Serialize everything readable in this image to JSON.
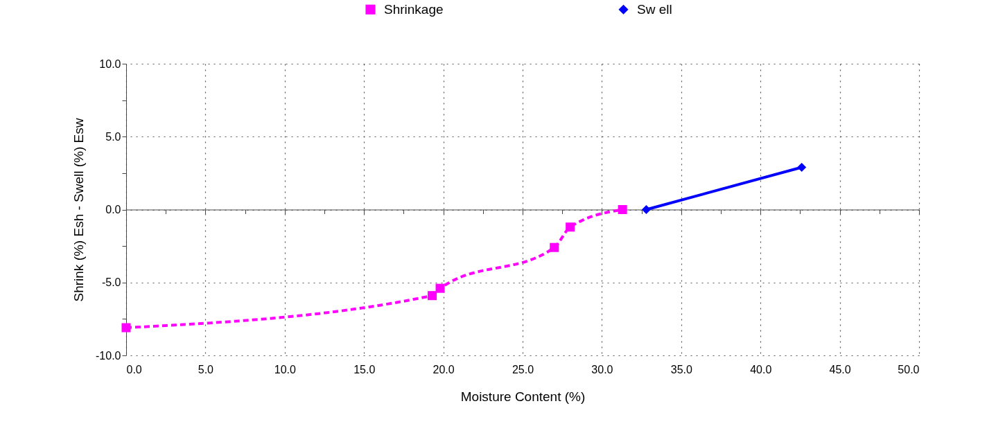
{
  "chart_data": {
    "type": "line",
    "xlabel": "Moisture Content (%)",
    "ylabel": "Shrink (%) Esh - Swell (%) Esw",
    "xlim": [
      0,
      50
    ],
    "ylim": [
      -10,
      10
    ],
    "xticks": [
      {
        "value": 0,
        "label": "0.0"
      },
      {
        "value": 2.5,
        "label": null
      },
      {
        "value": 5,
        "label": "5.0"
      },
      {
        "value": 7.5,
        "label": null
      },
      {
        "value": 10,
        "label": "10.0"
      },
      {
        "value": 12.5,
        "label": null
      },
      {
        "value": 15,
        "label": "15.0"
      },
      {
        "value": 17.5,
        "label": null
      },
      {
        "value": 20,
        "label": "20.0"
      },
      {
        "value": 22.5,
        "label": null
      },
      {
        "value": 25,
        "label": "25.0"
      },
      {
        "value": 27.5,
        "label": null
      },
      {
        "value": 30,
        "label": "30.0"
      },
      {
        "value": 32.5,
        "label": null
      },
      {
        "value": 35,
        "label": "35.0"
      },
      {
        "value": 37.5,
        "label": null
      },
      {
        "value": 40,
        "label": "40.0"
      },
      {
        "value": 42.5,
        "label": null
      },
      {
        "value": 45,
        "label": "45.0"
      },
      {
        "value": 47.5,
        "label": null
      },
      {
        "value": 50,
        "label": "50.0"
      }
    ],
    "yticks": [
      {
        "value": -10,
        "label": "-10.0"
      },
      {
        "value": -7.5,
        "label": null
      },
      {
        "value": -5,
        "label": "-5.0"
      },
      {
        "value": -2.5,
        "label": null
      },
      {
        "value": 0,
        "label": "0.0"
      },
      {
        "value": 2.5,
        "label": null
      },
      {
        "value": 5,
        "label": "5.0"
      },
      {
        "value": 7.5,
        "label": null
      },
      {
        "value": 10,
        "label": "10.0"
      }
    ],
    "grid": true,
    "legend": "top",
    "series": [
      {
        "name": "Shrinkage",
        "color": "#ff00ff",
        "marker": "square",
        "line_style": "dashed",
        "x": [
          0,
          19.3,
          19.8,
          27.0,
          28.0,
          31.3
        ],
        "values": [
          -8.1,
          -5.9,
          -5.4,
          -2.6,
          -1.2,
          0
        ]
      },
      {
        "name": "Sw ell",
        "color": "#0000ff",
        "marker": "diamond",
        "line_style": "solid",
        "x": [
          32.8,
          42.6
        ],
        "values": [
          0,
          2.9
        ]
      }
    ]
  }
}
